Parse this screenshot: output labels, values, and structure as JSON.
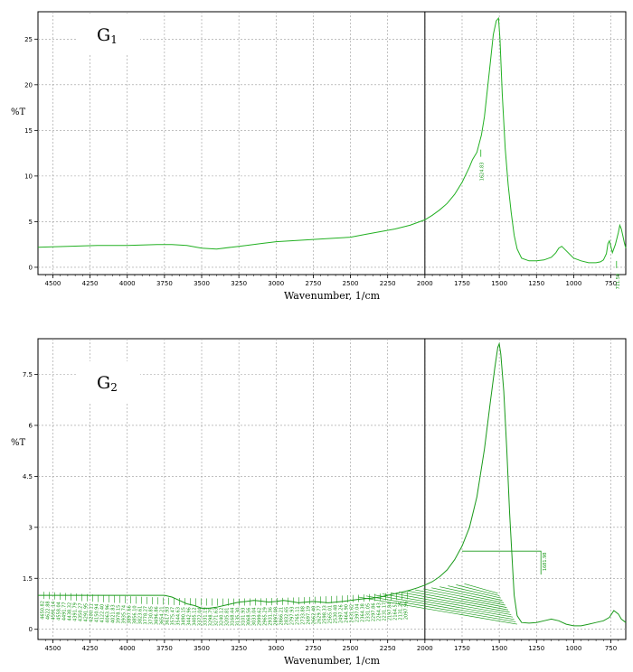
{
  "chart_data": [
    {
      "type": "line",
      "title": "",
      "panel_label": "G",
      "panel_label_sub": "1",
      "xlabel": "Wavenumber, 1/cm",
      "ylabel": "%T",
      "xlim": [
        4600,
        650
      ],
      "ylim": [
        -0.8,
        28
      ],
      "x_ticks": [
        4500,
        4250,
        4000,
        3750,
        3500,
        3250,
        3000,
        2750,
        2500,
        2250,
        2000,
        1750,
        1500,
        1250,
        1000,
        750
      ],
      "x_tick_labels": [
        "4500",
        "4250",
        "4000",
        "3750",
        "3500",
        "3250",
        "3000",
        "2750",
        "2500",
        "2250",
        "2000",
        "1750",
        "1500",
        "1250",
        "1000",
        "750"
      ],
      "y_ticks": [
        0,
        5,
        10,
        15,
        20,
        25
      ],
      "y_tick_labels": [
        "0",
        "5",
        "10",
        "15",
        "20",
        "25"
      ],
      "vline_x": 2000,
      "grid": true,
      "color": "#22b022",
      "series": [
        {
          "x": [
            4600,
            4400,
            4200,
            4000,
            3800,
            3700,
            3600,
            3500,
            3400,
            3300,
            3200,
            3100,
            3000,
            2900,
            2800,
            2700,
            2600,
            2500,
            2400,
            2300,
            2200,
            2100,
            2050,
            2000,
            1950,
            1900,
            1850,
            1800,
            1750,
            1700,
            1680,
            1650,
            1620,
            1600,
            1580,
            1560,
            1540,
            1520,
            1505,
            1495,
            1480,
            1460,
            1440,
            1420,
            1400,
            1380,
            1350,
            1300,
            1250,
            1200,
            1150,
            1120,
            1100,
            1080,
            1050,
            1000,
            950,
            900,
            850,
            820,
            800,
            780,
            770,
            760,
            750,
            740,
            720,
            700,
            690,
            680,
            670,
            660,
            650
          ],
          "y": [
            2.2,
            2.3,
            2.4,
            2.4,
            2.5,
            2.5,
            2.4,
            2.1,
            2.0,
            2.2,
            2.4,
            2.6,
            2.8,
            2.9,
            3.0,
            3.1,
            3.2,
            3.3,
            3.6,
            3.9,
            4.2,
            4.6,
            4.9,
            5.2,
            5.7,
            6.3,
            7.0,
            8.0,
            9.3,
            11.0,
            11.8,
            12.6,
            14.5,
            16.5,
            19.5,
            22.5,
            25.5,
            27.0,
            27.3,
            25.0,
            19.0,
            13.0,
            9.0,
            6.0,
            3.5,
            2.0,
            1.0,
            0.7,
            0.7,
            0.8,
            1.1,
            1.6,
            2.1,
            2.3,
            1.8,
            1.0,
            0.7,
            0.5,
            0.5,
            0.6,
            0.8,
            1.5,
            2.6,
            2.9,
            2.3,
            1.6,
            2.5,
            3.8,
            4.6,
            4.2,
            3.5,
            2.7,
            2.1
          ]
        }
      ],
      "annotations": [
        {
          "text": "1624.83",
          "x": 1624,
          "y": 12.5
        },
        {
          "text": "711.59",
          "x": 712,
          "y": 0.3
        }
      ]
    },
    {
      "type": "line",
      "title": "",
      "panel_label": "G",
      "panel_label_sub": "2",
      "xlabel": "Wavenumber, 1/cm",
      "ylabel": "%T",
      "xlim": [
        4600,
        650
      ],
      "ylim": [
        -0.3,
        8.55
      ],
      "x_ticks": [
        4500,
        4250,
        4000,
        3750,
        3500,
        3250,
        3000,
        2750,
        2500,
        2250,
        2000,
        1750,
        1500,
        1250,
        1000,
        750
      ],
      "x_tick_labels": [
        "4500",
        "4250",
        "4000",
        "3750",
        "3500",
        "3250",
        "3000",
        "2750",
        "2500",
        "2250",
        "2000",
        "1750",
        "1500",
        "1250",
        "1000",
        "750"
      ],
      "y_ticks": [
        0,
        1.5,
        3,
        4.5,
        6,
        7.5
      ],
      "y_tick_labels": [
        "0",
        "1.5",
        "3",
        "4.5",
        "6",
        "7.5"
      ],
      "vline_x": 2000,
      "grid": true,
      "color": "#1a9a1a",
      "series": [
        {
          "x": [
            4600,
            4500,
            4400,
            4300,
            4200,
            4100,
            4000,
            3900,
            3800,
            3750,
            3700,
            3650,
            3600,
            3550,
            3500,
            3450,
            3400,
            3350,
            3300,
            3250,
            3200,
            3150,
            3100,
            3050,
            3000,
            2950,
            2900,
            2850,
            2800,
            2750,
            2700,
            2650,
            2600,
            2550,
            2500,
            2450,
            2400,
            2350,
            2300,
            2250,
            2200,
            2150,
            2100,
            2050,
            2000,
            1950,
            1900,
            1850,
            1800,
            1750,
            1700,
            1650,
            1600,
            1560,
            1530,
            1510,
            1500,
            1490,
            1470,
            1450,
            1430,
            1410,
            1400,
            1380,
            1350,
            1300,
            1250,
            1200,
            1150,
            1100,
            1050,
            1000,
            950,
            900,
            850,
            800,
            760,
            730,
            700,
            680,
            650
          ],
          "y": [
            1.0,
            1.0,
            1.0,
            1.0,
            1.0,
            1.0,
            1.0,
            1.0,
            1.0,
            1.0,
            0.95,
            0.85,
            0.75,
            0.7,
            0.62,
            0.62,
            0.65,
            0.7,
            0.75,
            0.8,
            0.82,
            0.85,
            0.83,
            0.8,
            0.82,
            0.85,
            0.82,
            0.78,
            0.8,
            0.82,
            0.8,
            0.78,
            0.8,
            0.82,
            0.85,
            0.88,
            0.9,
            0.92,
            0.95,
            1.0,
            1.05,
            1.1,
            1.15,
            1.22,
            1.3,
            1.4,
            1.55,
            1.75,
            2.05,
            2.45,
            3.0,
            3.9,
            5.3,
            6.7,
            7.7,
            8.3,
            8.4,
            8.1,
            7.0,
            5.3,
            3.4,
            1.8,
            1.0,
            0.4,
            0.2,
            0.18,
            0.2,
            0.25,
            0.3,
            0.25,
            0.15,
            0.1,
            0.1,
            0.15,
            0.2,
            0.25,
            0.35,
            0.55,
            0.45,
            0.3,
            0.2
          ]
        }
      ],
      "annotations": [
        {
          "text": "1681.98",
          "x": 1682,
          "y": 2.3
        }
      ],
      "dense_peak_labels": [
        "4650.82",
        "4622.88",
        "4591.14",
        "4558.04",
        "4491.77",
        "4438.32",
        "4391.79",
        "4350.27",
        "4291.95",
        "4200.11",
        "4150.94",
        "4122.40",
        "4063.96",
        "4021.83",
        "3978.15",
        "3935.74",
        "3897.66",
        "3856.10",
        "3823.61",
        "3778.27",
        "3730.85",
        "3696.86",
        "3654.21",
        "3617.93",
        "3575.47",
        "3544.63",
        "3490.15",
        "3442.96",
        "3405.12",
        "3372.04",
        "3331.19",
        "3298.75",
        "3271.63",
        "3240.12",
        "3205.81",
        "3168.44",
        "3135.30",
        "3101.93",
        "3068.56",
        "3033.04",
        "2999.62",
        "2965.29",
        "2931.36",
        "2897.08",
        "2866.21",
        "2832.65",
        "2797.93",
        "2765.11",
        "2733.88",
        "2697.19",
        "2662.40",
        "2629.77",
        "2598.33",
        "2565.01",
        "2530.48",
        "2497.26",
        "2464.90",
        "2431.62",
        "2397.04",
        "2364.38",
        "2331.05",
        "2297.86",
        "2264.43",
        "2231.17",
        "2197.84",
        "2164.51",
        "2131.25",
        "2097.96"
      ]
    }
  ]
}
